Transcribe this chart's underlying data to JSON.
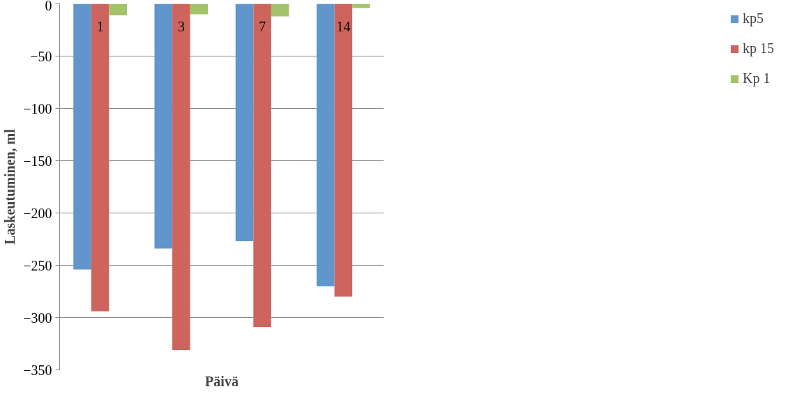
{
  "chart_data": {
    "type": "bar",
    "xlabel": "Päivä",
    "ylabel": "Laskeutuminen, ml",
    "categories": [
      "1",
      "3",
      "7",
      "14"
    ],
    "series": [
      {
        "name": "kp5",
        "color": "#6096cb",
        "values": [
          -254,
          -234,
          -227,
          -270
        ]
      },
      {
        "name": "kp 15",
        "color": "#cd645e",
        "values": [
          -294,
          -331,
          -309,
          -280
        ]
      },
      {
        "name": "Kp 1",
        "color": "#a2c36a",
        "values": [
          -11,
          -10,
          -12,
          -4
        ]
      }
    ],
    "ylim": [
      -350,
      0
    ],
    "yticks": [
      -350,
      -300,
      -250,
      -200,
      -150,
      -100,
      -50,
      0
    ],
    "grid": "y",
    "legend": "right"
  }
}
